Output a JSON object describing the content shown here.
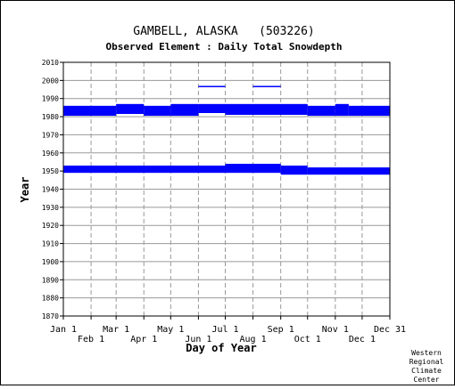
{
  "header": {
    "title": "GAMBELL, ALASKA   (503226)",
    "subtitle": "Observed Element : Daily Total Snowdepth"
  },
  "chart_data": {
    "type": "bar",
    "xlabel": "Day of Year",
    "ylabel": "Year",
    "xlim": [
      1,
      366
    ],
    "ylim": [
      1870,
      2010
    ],
    "yticks": [
      1870,
      1880,
      1890,
      1900,
      1910,
      1920,
      1930,
      1940,
      1950,
      1960,
      1970,
      1980,
      1990,
      2000,
      2010
    ],
    "month_ticks": [
      {
        "label": "Jan 1",
        "day": 1,
        "row": 1
      },
      {
        "label": "Feb 1",
        "day": 32,
        "row": 2
      },
      {
        "label": "Mar 1",
        "day": 60,
        "row": 1
      },
      {
        "label": "Apr 1",
        "day": 91,
        "row": 2
      },
      {
        "label": "May 1",
        "day": 121,
        "row": 1
      },
      {
        "label": "Jun 1",
        "day": 152,
        "row": 2
      },
      {
        "label": "Jul 1",
        "day": 182,
        "row": 1
      },
      {
        "label": "Aug 1",
        "day": 213,
        "row": 2
      },
      {
        "label": "Sep 1",
        "day": 244,
        "row": 1
      },
      {
        "label": "Oct 1",
        "day": 274,
        "row": 2
      },
      {
        "label": "Nov 1",
        "day": 305,
        "row": 1
      },
      {
        "label": "Dec 1",
        "day": 335,
        "row": 2
      },
      {
        "label": "Dec 31",
        "day": 366,
        "row": 1
      }
    ],
    "grid": true,
    "bar_color": "#0000ff",
    "coverage": [
      {
        "from_day": 1,
        "to_day": 60,
        "year_from": 1980.5,
        "year_to": 1986
      },
      {
        "from_day": 60,
        "to_day": 91,
        "year_from": 1981.5,
        "year_to": 1987
      },
      {
        "from_day": 91,
        "to_day": 121,
        "year_from": 1980.5,
        "year_to": 1986
      },
      {
        "from_day": 121,
        "to_day": 152,
        "year_from": 1980.5,
        "year_to": 1987
      },
      {
        "from_day": 152,
        "to_day": 182,
        "year_from": 1982,
        "year_to": 1987
      },
      {
        "from_day": 182,
        "to_day": 274,
        "year_from": 1981,
        "year_to": 1987
      },
      {
        "from_day": 274,
        "to_day": 305,
        "year_from": 1980.5,
        "year_to": 1986
      },
      {
        "from_day": 305,
        "to_day": 320,
        "year_from": 1980.5,
        "year_to": 1987
      },
      {
        "from_day": 320,
        "to_day": 366,
        "year_from": 1980.5,
        "year_to": 1986
      },
      {
        "from_day": 152,
        "to_day": 182,
        "year_from": 1996.5,
        "year_to": 1997
      },
      {
        "from_day": 213,
        "to_day": 244,
        "year_from": 1996.5,
        "year_to": 1997
      },
      {
        "from_day": 1,
        "to_day": 182,
        "year_from": 1949,
        "year_to": 1953
      },
      {
        "from_day": 182,
        "to_day": 244,
        "year_from": 1949,
        "year_to": 1954
      },
      {
        "from_day": 244,
        "to_day": 274,
        "year_from": 1948,
        "year_to": 1953
      },
      {
        "from_day": 274,
        "to_day": 366,
        "year_from": 1948,
        "year_to": 1952
      }
    ]
  },
  "footer": {
    "credit_lines": [
      "Western",
      "Regional",
      "Climate",
      "Center"
    ]
  }
}
